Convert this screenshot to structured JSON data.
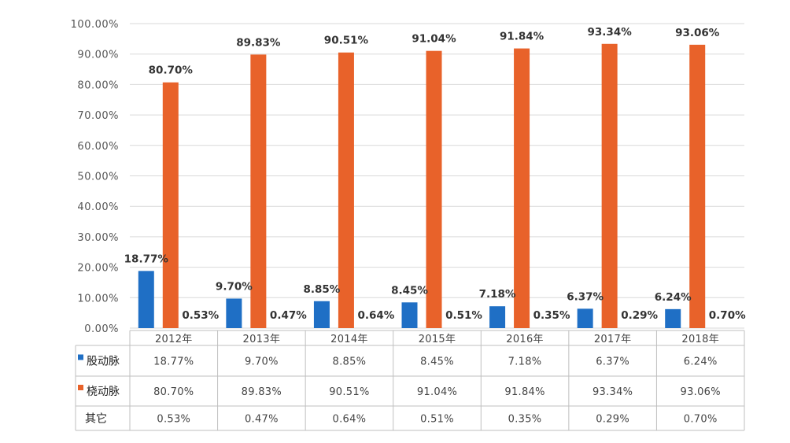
{
  "chart_data": {
    "type": "bar",
    "categories": [
      "2012年",
      "2013年",
      "2014年",
      "2015年",
      "2016年",
      "2017年",
      "2018年"
    ],
    "series": [
      {
        "name": "股动脉",
        "color": "#1f6fc5",
        "values": [
          18.77,
          9.7,
          8.85,
          8.45,
          7.18,
          6.37,
          6.24
        ],
        "labels": [
          "18.77%",
          "9.70%",
          "8.85%",
          "8.45%",
          "7.18%",
          "6.37%",
          "6.24%"
        ]
      },
      {
        "name": "桡动脉",
        "color": "#e8622a",
        "values": [
          80.7,
          89.83,
          90.51,
          91.04,
          91.84,
          93.34,
          93.06
        ],
        "labels": [
          "80.70%",
          "89.83%",
          "90.51%",
          "91.04%",
          "91.84%",
          "93.34%",
          "93.06%"
        ]
      },
      {
        "name": "其它",
        "color": null,
        "values": [
          0.53,
          0.47,
          0.64,
          0.51,
          0.35,
          0.29,
          0.7
        ],
        "labels": [
          "0.53%",
          "0.47%",
          "0.64%",
          "0.51%",
          "0.35%",
          "0.29%",
          "0.70%"
        ]
      }
    ],
    "ylim": [
      0,
      100
    ],
    "yticks": [
      "0.00%",
      "10.00%",
      "20.00%",
      "30.00%",
      "40.00%",
      "50.00%",
      "60.00%",
      "70.00%",
      "80.00%",
      "90.00%",
      "100.00%"
    ],
    "grid": true,
    "legend": "data-table",
    "title": "",
    "xlabel": "",
    "ylabel": ""
  }
}
